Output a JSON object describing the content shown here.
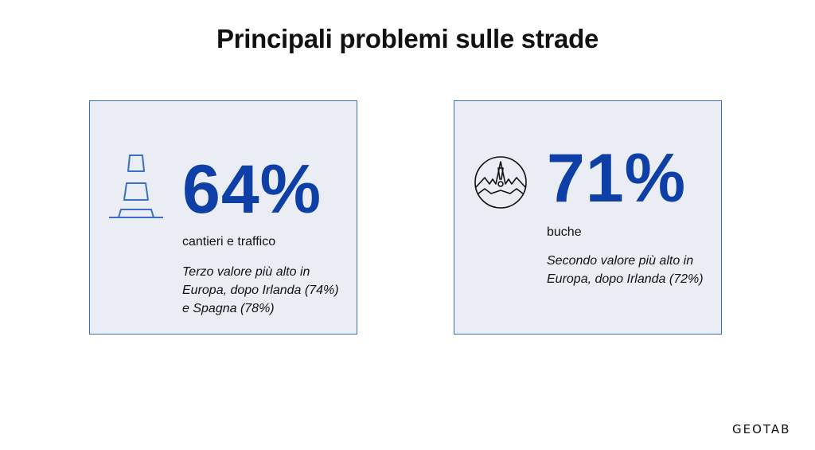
{
  "title": "Principali problemi sulle strade",
  "cards": [
    {
      "icon": "traffic-cone-icon",
      "value": "64%",
      "label": "cantieri e traffico",
      "note_lines": [
        "Terzo valore più alto in",
        "Europa, dopo Irlanda (74%)",
        "e Spagna (78%)"
      ]
    },
    {
      "icon": "pothole-icon",
      "value": "71%",
      "label": "buche",
      "note_lines": [
        "Secondo valore più alto in",
        "Europa, dopo Irlanda (72%)"
      ]
    }
  ],
  "logo": "GEOTAB",
  "colors": {
    "accent": "#0d3fa6",
    "card_bg": "#eaedf3",
    "card_border": "#3b6fc4"
  }
}
